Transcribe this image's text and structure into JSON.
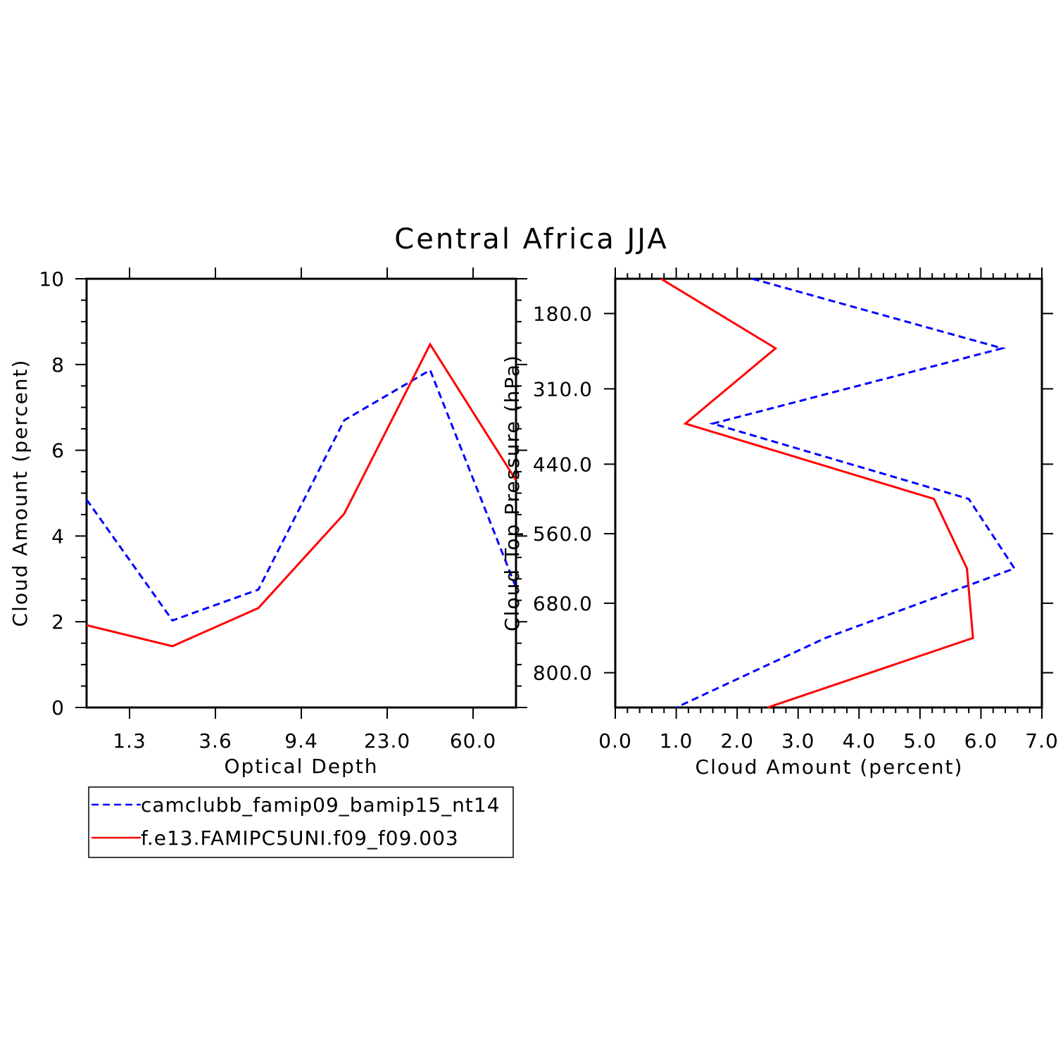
{
  "title": "Central Africa JJA",
  "colors": {
    "series1": "#0000ff",
    "series2": "#ff0000"
  },
  "legend": {
    "items": [
      {
        "label": "camclubb_famip09_bamip15_nt14",
        "color": "#0000ff",
        "dash": "dashed"
      },
      {
        "label": "f.e13.FAMIPC5UNI.f09_f09.003",
        "color": "#ff0000",
        "dash": "solid"
      }
    ]
  },
  "chart_data": [
    {
      "type": "line",
      "xlabel": "Optical Depth",
      "ylabel": "Cloud Amount (percent)",
      "ylim": [
        0,
        10
      ],
      "yticks": [
        "0",
        "2",
        "4",
        "6",
        "8",
        "10"
      ],
      "xticks": [
        "1.3",
        "3.6",
        "9.4",
        "23.0",
        "60.0"
      ],
      "x_positions": [
        0,
        1,
        2,
        3,
        4,
        5
      ],
      "series": [
        {
          "name": "camclubb_famip09_bamip15_nt14",
          "values": [
            4.85,
            2.03,
            2.75,
            6.7,
            7.87,
            2.8
          ]
        },
        {
          "name": "f.e13.FAMIPC5UNI.f09_f09.003",
          "values": [
            1.92,
            1.43,
            2.32,
            4.52,
            8.47,
            5.3
          ]
        }
      ]
    },
    {
      "type": "line",
      "xlabel": "Cloud Amount (percent)",
      "ylabel": "Cloud Top Pressure (hPa)",
      "xlim": [
        0,
        7
      ],
      "xticks": [
        "0.0",
        "1.0",
        "2.0",
        "3.0",
        "4.0",
        "5.0",
        "6.0",
        "7.0"
      ],
      "ylim": [
        120,
        860
      ],
      "yticks": [
        "180.0",
        "310.0",
        "440.0",
        "560.0",
        "680.0",
        "800.0"
      ],
      "pressure_levels": [
        120,
        240,
        370,
        500,
        620,
        740,
        860
      ],
      "series": [
        {
          "name": "camclubb_famip09_bamip15_nt14",
          "values": [
            2.25,
            6.35,
            1.6,
            5.8,
            6.55,
            3.45,
            1.0
          ]
        },
        {
          "name": "f.e13.FAMIPC5UNI.f09_f09.003",
          "values": [
            0.75,
            2.63,
            1.15,
            5.23,
            5.77,
            5.87,
            2.5
          ]
        }
      ]
    }
  ]
}
